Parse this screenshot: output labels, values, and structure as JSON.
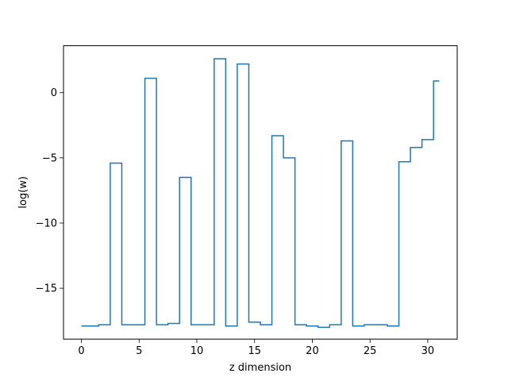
{
  "chart_data": {
    "type": "line",
    "step": "mid",
    "title": "",
    "xlabel": "z dimension",
    "ylabel": "log(w)",
    "xlim": [
      -1.55,
      32.55
    ],
    "ylim": [
      -18.9,
      3.6
    ],
    "xticks": [
      0,
      5,
      10,
      15,
      20,
      25,
      30
    ],
    "yticks": [
      -15,
      -10,
      -5,
      0
    ],
    "ytick_labels": [
      "−15",
      "−10",
      "−5",
      "0"
    ],
    "grid": false,
    "legend": "none",
    "series": [
      {
        "color": "#1f77b4",
        "x": [
          0,
          1,
          2,
          3,
          4,
          5,
          6,
          7,
          8,
          9,
          10,
          11,
          12,
          13,
          14,
          15,
          16,
          17,
          18,
          19,
          20,
          21,
          22,
          23,
          24,
          25,
          26,
          27,
          28,
          29,
          30,
          31
        ],
        "y": [
          -17.9,
          -17.9,
          -17.8,
          -5.4,
          -17.8,
          -17.8,
          1.1,
          -17.8,
          -17.7,
          -6.5,
          -17.8,
          -17.8,
          2.6,
          -17.9,
          2.2,
          -17.6,
          -17.8,
          -3.3,
          -5.0,
          -17.8,
          -17.9,
          -18.0,
          -17.8,
          -3.7,
          -17.9,
          -17.8,
          -17.8,
          -17.9,
          -5.3,
          -4.2,
          -3.6,
          0.9
        ]
      }
    ]
  }
}
